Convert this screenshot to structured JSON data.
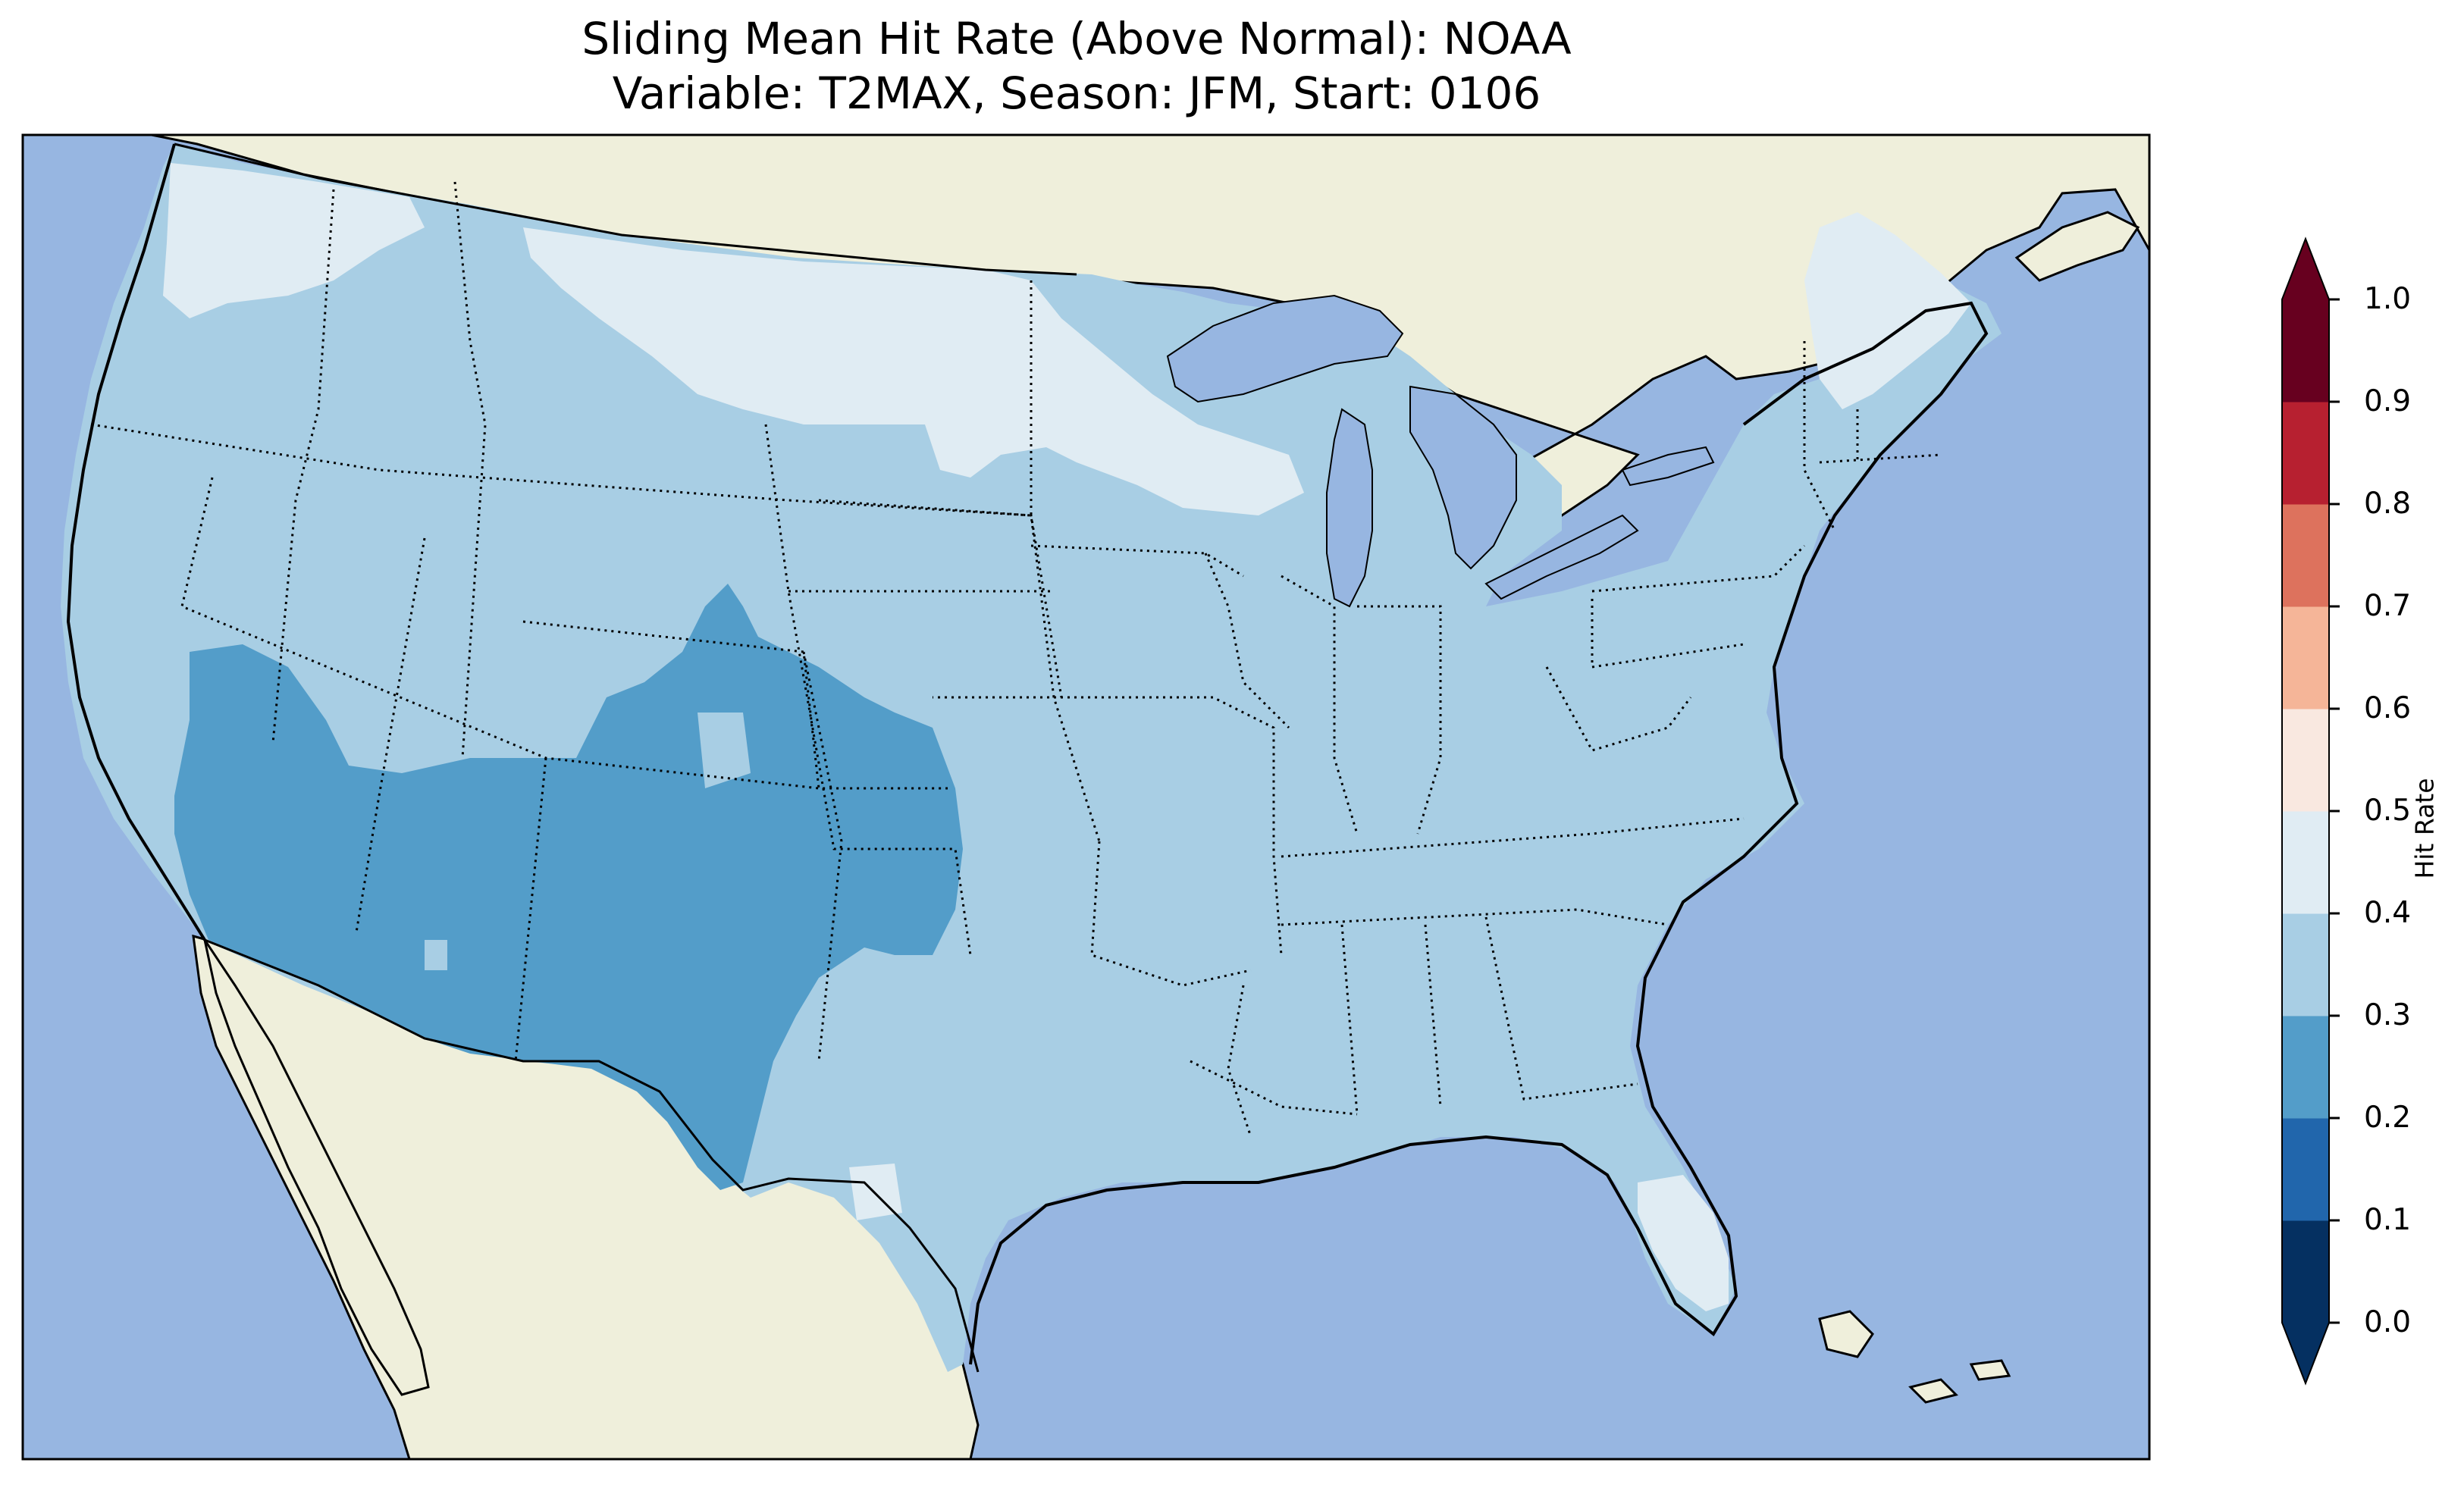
{
  "title": {
    "line1": "Sliding Mean Hit Rate (Above Normal): NOAA",
    "line2": "Variable: T2MAX, Season: JFM, Start: 0106"
  },
  "map": {
    "region": "Contiguous United States",
    "projection": "lat-lon",
    "ocean_color": "#97b6e1",
    "land_color": "#efefdb",
    "field_description": "gridded hit rate shaded by colorbar bins"
  },
  "colorbar": {
    "label": "Hit Rate",
    "extend": "both",
    "ticks": [
      "0.0",
      "0.1",
      "0.2",
      "0.3",
      "0.4",
      "0.5",
      "0.6",
      "0.7",
      "0.8",
      "0.9",
      "1.0"
    ],
    "bins": [
      {
        "range": [
          0.0,
          0.1
        ],
        "color": "#053061"
      },
      {
        "range": [
          0.1,
          0.2
        ],
        "color": "#2166ac"
      },
      {
        "range": [
          0.2,
          0.3
        ],
        "color": "#539dc9"
      },
      {
        "range": [
          0.3,
          0.4
        ],
        "color": "#a8cee4"
      },
      {
        "range": [
          0.4,
          0.5
        ],
        "color": "#e0ecf3"
      },
      {
        "range": [
          0.5,
          0.6
        ],
        "color": "#f9e8e0"
      },
      {
        "range": [
          0.6,
          0.7
        ],
        "color": "#f5b598"
      },
      {
        "range": [
          0.7,
          0.8
        ],
        "color": "#dd725d"
      },
      {
        "range": [
          0.8,
          0.9
        ],
        "color": "#b72030"
      },
      {
        "range": [
          0.9,
          1.0
        ],
        "color": "#67001f"
      }
    ]
  },
  "regions": [
    {
      "name": "pacific-northwest-coast",
      "value_bin": "0.4-0.5"
    },
    {
      "name": "northern-plains",
      "value_bin": "0.4-0.5"
    },
    {
      "name": "upper-midwest-wisconsin",
      "value_bin": "0.4-0.5"
    },
    {
      "name": "northern-new-england",
      "value_bin": "0.4-0.5"
    },
    {
      "name": "south-florida",
      "value_bin": "0.4-0.5"
    },
    {
      "name": "southwest-four-corners",
      "value_bin": "0.2-0.3"
    },
    {
      "name": "colorado-kansas",
      "value_bin": "0.2-0.3"
    },
    {
      "name": "west-texas",
      "value_bin": "0.2-0.3"
    },
    {
      "name": "remaining-conus",
      "value_bin": "0.3-0.4"
    }
  ]
}
